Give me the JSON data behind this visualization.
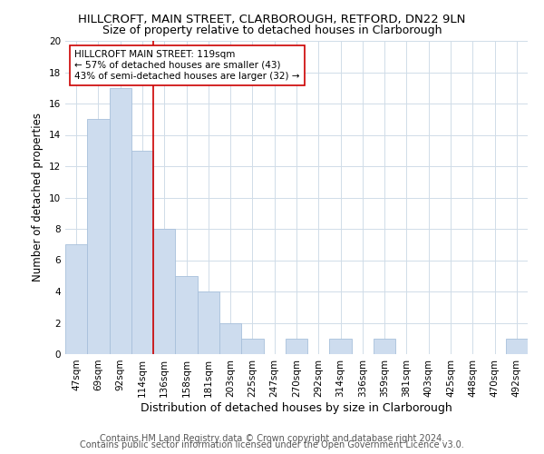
{
  "title": "HILLCROFT, MAIN STREET, CLARBOROUGH, RETFORD, DN22 9LN",
  "subtitle": "Size of property relative to detached houses in Clarborough",
  "xlabel": "Distribution of detached houses by size in Clarborough",
  "ylabel": "Number of detached properties",
  "bar_labels": [
    "47sqm",
    "69sqm",
    "92sqm",
    "114sqm",
    "136sqm",
    "158sqm",
    "181sqm",
    "203sqm",
    "225sqm",
    "247sqm",
    "270sqm",
    "292sqm",
    "314sqm",
    "336sqm",
    "359sqm",
    "381sqm",
    "403sqm",
    "425sqm",
    "448sqm",
    "470sqm",
    "492sqm"
  ],
  "bar_values": [
    7,
    15,
    17,
    13,
    8,
    5,
    4,
    2,
    1,
    0,
    1,
    0,
    1,
    0,
    1,
    0,
    0,
    0,
    0,
    0,
    1
  ],
  "bar_color": "#cddcee",
  "bar_edge_color": "#a8c0db",
  "vline_x_index": 3,
  "vline_color": "#cc0000",
  "annotation_title": "HILLCROFT MAIN STREET: 119sqm",
  "annotation_line1": "← 57% of detached houses are smaller (43)",
  "annotation_line2": "43% of semi-detached houses are larger (32) →",
  "annotation_box_color": "#ffffff",
  "annotation_box_edge": "#cc0000",
  "ylim": [
    0,
    20
  ],
  "yticks": [
    0,
    2,
    4,
    6,
    8,
    10,
    12,
    14,
    16,
    18,
    20
  ],
  "footer_line1": "Contains HM Land Registry data © Crown copyright and database right 2024.",
  "footer_line2": "Contains public sector information licensed under the Open Government Licence v3.0.",
  "title_fontsize": 9.5,
  "subtitle_fontsize": 9,
  "xlabel_fontsize": 9,
  "ylabel_fontsize": 8.5,
  "tick_fontsize": 7.5,
  "annotation_fontsize": 7.5,
  "footer_fontsize": 7,
  "background_color": "#ffffff",
  "grid_color": "#d0dce8"
}
